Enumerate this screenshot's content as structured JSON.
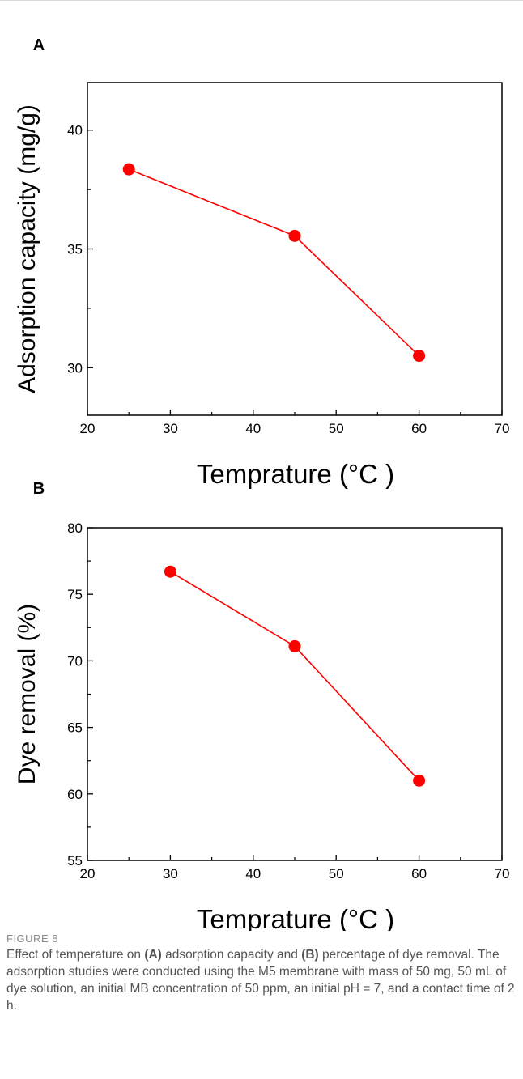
{
  "chart_data": [
    {
      "type": "line",
      "panel_label": "A",
      "x": [
        25,
        45,
        60
      ],
      "series": [
        {
          "values": [
            38.35,
            35.55,
            30.5
          ]
        }
      ],
      "xlabel": "Temprature (°C )",
      "ylabel": "Adsorption capacity (mg/g)",
      "xlim": [
        20,
        70
      ],
      "ylim": [
        28,
        42
      ],
      "xticks": [
        20,
        30,
        40,
        50,
        60,
        70
      ],
      "xtick_labels": [
        "20",
        "30",
        "40",
        "50",
        "60",
        "70"
      ],
      "yticks": [
        30,
        35,
        40
      ],
      "ytick_labels": [
        "30",
        "35",
        "40"
      ],
      "grid": false,
      "color": "#ff0000"
    },
    {
      "type": "line",
      "panel_label": "B",
      "x": [
        30,
        45,
        60
      ],
      "series": [
        {
          "values": [
            76.7,
            71.1,
            61.0
          ]
        }
      ],
      "xlabel": "Temprature (°C )",
      "ylabel": "Dye removal  (%)",
      "xlim": [
        20,
        70
      ],
      "ylim": [
        55,
        80
      ],
      "xticks": [
        20,
        30,
        40,
        50,
        60,
        70
      ],
      "xtick_labels": [
        "20",
        "30",
        "40",
        "50",
        "60",
        "70"
      ],
      "yticks": [
        55,
        60,
        65,
        70,
        75,
        80
      ],
      "ytick_labels": [
        "55",
        "60",
        "65",
        "70",
        "75",
        "80"
      ],
      "grid": false,
      "color": "#ff0000"
    }
  ],
  "caption": {
    "label": "FIGURE 8",
    "parts": [
      "Effect of temperature on ",
      "(A)",
      " adsorption capacity and ",
      "(B)",
      " percentage of dye removal. The adsorption studies were conducted using the M5 membrane with mass of 50 mg, 50 mL of dye solution, an initial MB concentration of 50 ppm, an initial pH = 7, and a contact time of 2 h."
    ]
  }
}
